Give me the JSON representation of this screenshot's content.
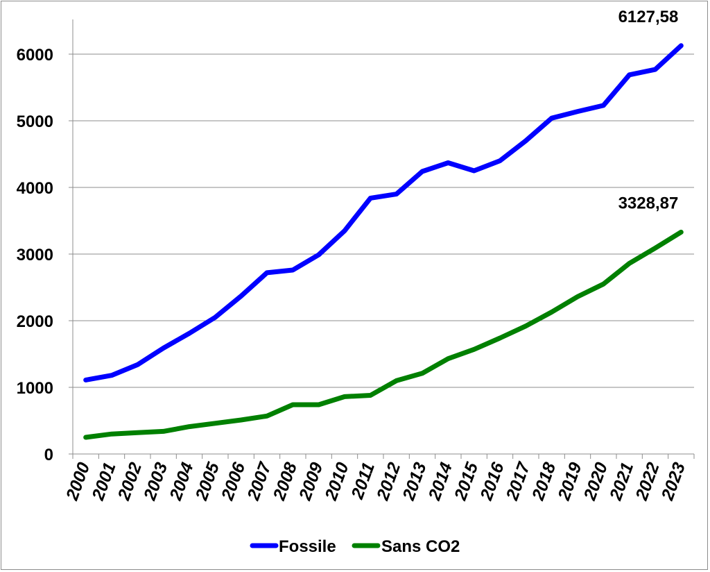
{
  "chart_data": {
    "type": "line",
    "x": [
      "2000",
      "2001",
      "2002",
      "2003",
      "2004",
      "2005",
      "2006",
      "2007",
      "2008",
      "2009",
      "2010",
      "2011",
      "2012",
      "2013",
      "2014",
      "2015",
      "2016",
      "2017",
      "2018",
      "2019",
      "2020",
      "2021",
      "2022",
      "2023"
    ],
    "ylim": [
      0,
      6500
    ],
    "yticks": [
      0,
      1000,
      2000,
      3000,
      4000,
      5000,
      6000
    ],
    "grid": true,
    "legend_position": "bottom",
    "series": [
      {
        "name": "Fossile",
        "color": "#0000ff",
        "values": [
          1110,
          1180,
          1340,
          1590,
          1810,
          2050,
          2370,
          2720,
          2760,
          2990,
          3350,
          3840,
          3900,
          4240,
          4370,
          4250,
          4400,
          4700,
          5040,
          5140,
          5230,
          5690,
          5770,
          6127.58
        ],
        "end_label": "6127,58"
      },
      {
        "name": "Sans CO2",
        "color": "#008000",
        "values": [
          250,
          300,
          320,
          340,
          410,
          460,
          510,
          570,
          740,
          740,
          860,
          880,
          1100,
          1210,
          1430,
          1570,
          1740,
          1920,
          2130,
          2360,
          2550,
          2860,
          3090,
          3328.87
        ],
        "end_label": "3328,87"
      }
    ]
  }
}
